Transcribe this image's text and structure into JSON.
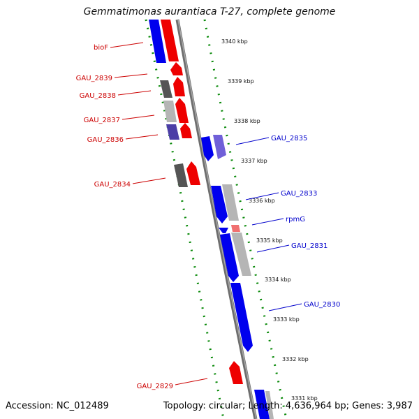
{
  "title": "Gemmatimonas aurantiaca T-27, complete genome",
  "footer": {
    "accession": "Accession: NC_012489",
    "topology": "Topology: circular; Length: 4,636,964 bp; Genes: 3,987"
  },
  "colors": {
    "forward_strand": "#0000ee",
    "reverse_strand": "#ee0000",
    "backbone": "#808080",
    "ruler": "#008000",
    "label_forward": "#0000cc",
    "label_reverse": "#cc0000"
  },
  "ticks": [
    {
      "label": "3340 kbp"
    },
    {
      "label": "3339 kbp"
    },
    {
      "label": "3338 kbp"
    },
    {
      "label": "3337 kbp"
    },
    {
      "label": "3336 kbp"
    },
    {
      "label": "3335 kbp"
    },
    {
      "label": "3334 kbp"
    },
    {
      "label": "3333 kbp"
    },
    {
      "label": "3332 kbp"
    },
    {
      "label": "3331 kbp"
    }
  ],
  "gene_labels": [
    {
      "name": "bioF",
      "strand": "reverse"
    },
    {
      "name": "GAU_2839",
      "strand": "reverse"
    },
    {
      "name": "GAU_2838",
      "strand": "reverse"
    },
    {
      "name": "GAU_2837",
      "strand": "reverse"
    },
    {
      "name": "GAU_2836",
      "strand": "reverse"
    },
    {
      "name": "GAU_2834",
      "strand": "reverse"
    },
    {
      "name": "GAU_2829",
      "strand": "reverse"
    },
    {
      "name": "GAU_2835",
      "strand": "forward"
    },
    {
      "name": "GAU_2833",
      "strand": "forward"
    },
    {
      "name": "rpmG",
      "strand": "forward"
    },
    {
      "name": "GAU_2831",
      "strand": "forward"
    },
    {
      "name": "GAU_2830",
      "strand": "forward"
    }
  ]
}
